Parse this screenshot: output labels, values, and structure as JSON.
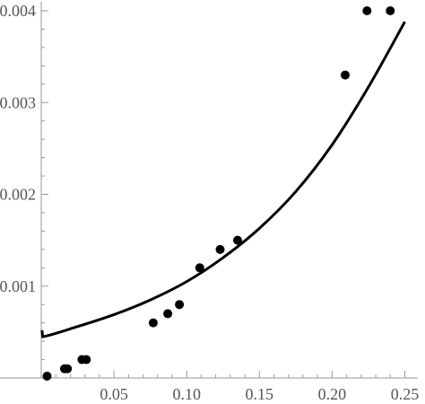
{
  "chart_data": {
    "type": "scatter",
    "title": "",
    "xlabel": "",
    "ylabel": "",
    "xlim": [
      0,
      0.25
    ],
    "ylim": [
      0,
      0.004
    ],
    "grid": false,
    "x_ticks": [
      {
        "value": 0.05,
        "label": "0.05"
      },
      {
        "value": 0.1,
        "label": "0.10"
      },
      {
        "value": 0.15,
        "label": "0.15"
      },
      {
        "value": 0.2,
        "label": "0.20"
      },
      {
        "value": 0.25,
        "label": "0.25"
      }
    ],
    "y_ticks": [
      {
        "value": 0.001,
        "label": "0.001"
      },
      {
        "value": 0.002,
        "label": "0.002"
      },
      {
        "value": 0.003,
        "label": "0.003"
      },
      {
        "value": 0.004,
        "label": "0.004"
      }
    ],
    "series": [
      {
        "type": "scatter",
        "color": "#000000",
        "points": [
          [
            0.004,
            2e-05
          ],
          [
            0.016,
            0.0001
          ],
          [
            0.018,
            0.0001
          ],
          [
            0.028,
            0.0002
          ],
          [
            0.031,
            0.0002
          ],
          [
            0.077,
            0.0006
          ],
          [
            0.087,
            0.0007
          ],
          [
            0.095,
            0.0008
          ],
          [
            0.109,
            0.0012
          ],
          [
            0.123,
            0.0014
          ],
          [
            0.135,
            0.0015
          ],
          [
            0.209,
            0.0033
          ],
          [
            0.224,
            0.004
          ],
          [
            0.24,
            0.004
          ]
        ]
      },
      {
        "type": "line",
        "color": "#000000",
        "points": [
          [
            0.0005,
            0.00052
          ],
          [
            0.001,
            0.00045
          ],
          [
            0.025,
            0.00056
          ],
          [
            0.05,
            0.00069
          ],
          [
            0.075,
            0.00085
          ],
          [
            0.1,
            0.00105
          ],
          [
            0.125,
            0.00131
          ],
          [
            0.15,
            0.00163
          ],
          [
            0.175,
            0.00203
          ],
          [
            0.2,
            0.00254
          ],
          [
            0.225,
            0.00317
          ],
          [
            0.25,
            0.00388
          ]
        ]
      }
    ]
  }
}
